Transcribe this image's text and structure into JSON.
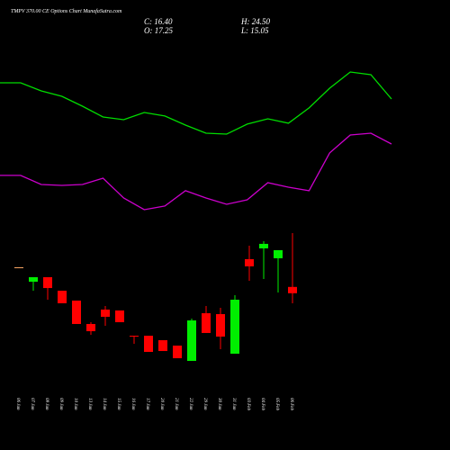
{
  "chart_data": {
    "type": "candlestick",
    "title": "TMPV 370.00 CE Options Chart MunafaSutra.com",
    "summary": [
      "C: 16.40",
      "O: 17.25",
      "H: 24.50",
      "L: 15.05"
    ],
    "categories": [
      "06 Jan",
      "07 Jan",
      "08 Jan",
      "09 Jan",
      "10 Jan",
      "13 Jan",
      "14 Jan",
      "15 Jan",
      "16 Jan",
      "17 Jan",
      "20 Jan",
      "21 Jan",
      "22 Jan",
      "29 Jan",
      "30 Jan",
      "31 Jan",
      "03 Feb",
      "04 Feb",
      "05 Feb",
      "06 Feb"
    ],
    "open": [
      19.9,
      17.95,
      18.56,
      16.74,
      15.41,
      12.26,
      14.2,
      14.08,
      10.68,
      10.68,
      10.08,
      9.35,
      7.29,
      13.71,
      13.59,
      8.26,
      20.99,
      22.44,
      21.11,
      17.25
    ],
    "high": [
      19.9,
      18.56,
      18.56,
      16.74,
      15.41,
      12.5,
      14.68,
      14.08,
      10.68,
      10.68,
      10.08,
      9.35,
      12.99,
      14.68,
      14.44,
      16.14,
      22.8,
      23.41,
      22.2,
      24.5
    ],
    "low": [
      19.9,
      16.74,
      15.53,
      15.05,
      12.26,
      10.8,
      12.02,
      12.5,
      9.6,
      8.5,
      8.62,
      7.65,
      7.29,
      11.05,
      8.87,
      8.26,
      18.08,
      18.32,
      16.5,
      15.05
    ],
    "close": [
      19.9,
      18.56,
      17.1,
      15.05,
      12.26,
      11.29,
      13.23,
      12.5,
      10.56,
      8.5,
      8.62,
      7.65,
      12.74,
      11.05,
      10.56,
      15.53,
      20.02,
      23.05,
      22.2,
      16.4
    ],
    "up_color": "#00ee00",
    "down_color": "#ff0000",
    "flat_color": "#ffaa66",
    "series": [
      {
        "color": "#00dd00",
        "values": [
          44.74,
          44.74,
          43.65,
          42.92,
          41.59,
          40.13,
          39.77,
          40.74,
          40.26,
          39.04,
          37.95,
          37.83,
          39.17,
          39.89,
          39.29,
          41.35,
          44.01,
          46.19,
          45.83,
          42.56
        ]
      },
      {
        "color": "#cc00cc",
        "values": [
          32.26,
          32.26,
          31.04,
          30.92,
          31.04,
          31.89,
          29.23,
          27.65,
          28.14,
          30.2,
          29.23,
          28.38,
          28.98,
          31.29,
          30.68,
          30.2,
          35.29,
          37.71,
          37.95,
          36.5
        ]
      }
    ]
  }
}
